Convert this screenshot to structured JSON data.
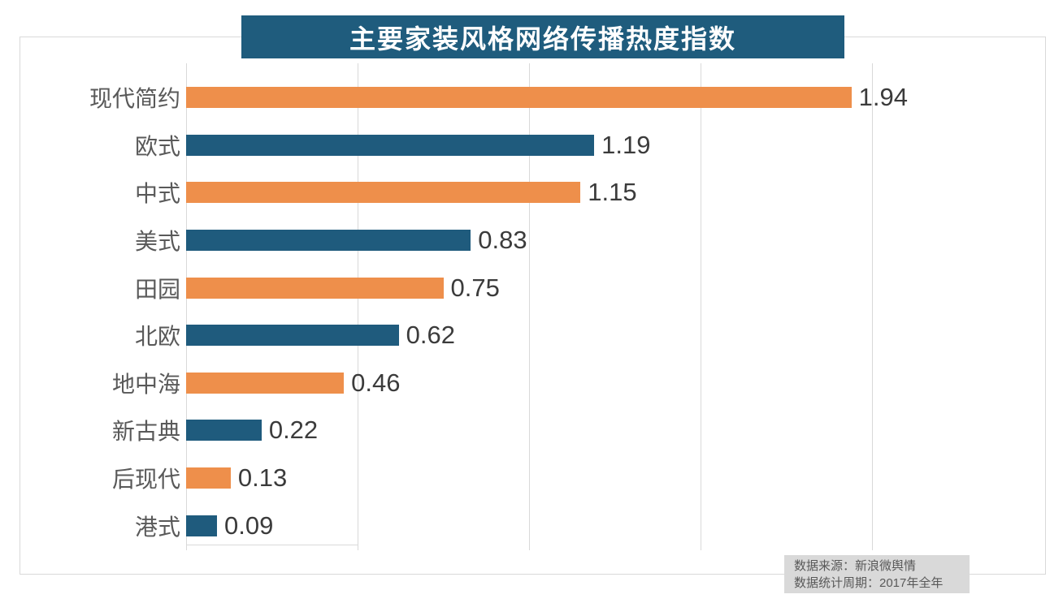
{
  "title": "主要家装风格网络传播热度指数",
  "source_note": {
    "line1": "数据来源：新浪微舆情",
    "line2": "数据统计周期：2017年全年"
  },
  "colors": {
    "banner_background": "#1f5c7d",
    "bar_orange": "#ee8f4b",
    "bar_teal": "#1f5b7d",
    "gridline": "#d9d9d9",
    "category_label": "#595959",
    "value_label": "#3b3b3b",
    "note_background": "#d9d9d9",
    "note_text": "#595959",
    "title_text": "#ffffff"
  },
  "chart_data": {
    "type": "bar",
    "orientation": "horizontal",
    "title": "主要家装风格网络传播热度指数",
    "categories": [
      "现代简约",
      "欧式",
      "中式",
      "美式",
      "田园",
      "北欧",
      "地中海",
      "新古典",
      "后现代",
      "港式"
    ],
    "values": [
      1.94,
      1.19,
      1.15,
      0.83,
      0.75,
      0.62,
      0.46,
      0.22,
      0.13,
      0.09
    ],
    "value_labels": [
      "1.94",
      "1.19",
      "1.15",
      "0.83",
      "0.75",
      "0.62",
      "0.46",
      "0.22",
      "0.13",
      "0.09"
    ],
    "bar_color_pattern": [
      "#ee8f4b",
      "#1f5b7d"
    ],
    "xlim": [
      0,
      2.0
    ],
    "grid_values": [
      0,
      0.5,
      1.0,
      1.5,
      2.0
    ],
    "grid": "vertical-only",
    "legend": "none",
    "data_labels": "outside-end",
    "annotations": [
      "数据来源：新浪微舆情",
      "数据统计周期：2017年全年"
    ]
  }
}
